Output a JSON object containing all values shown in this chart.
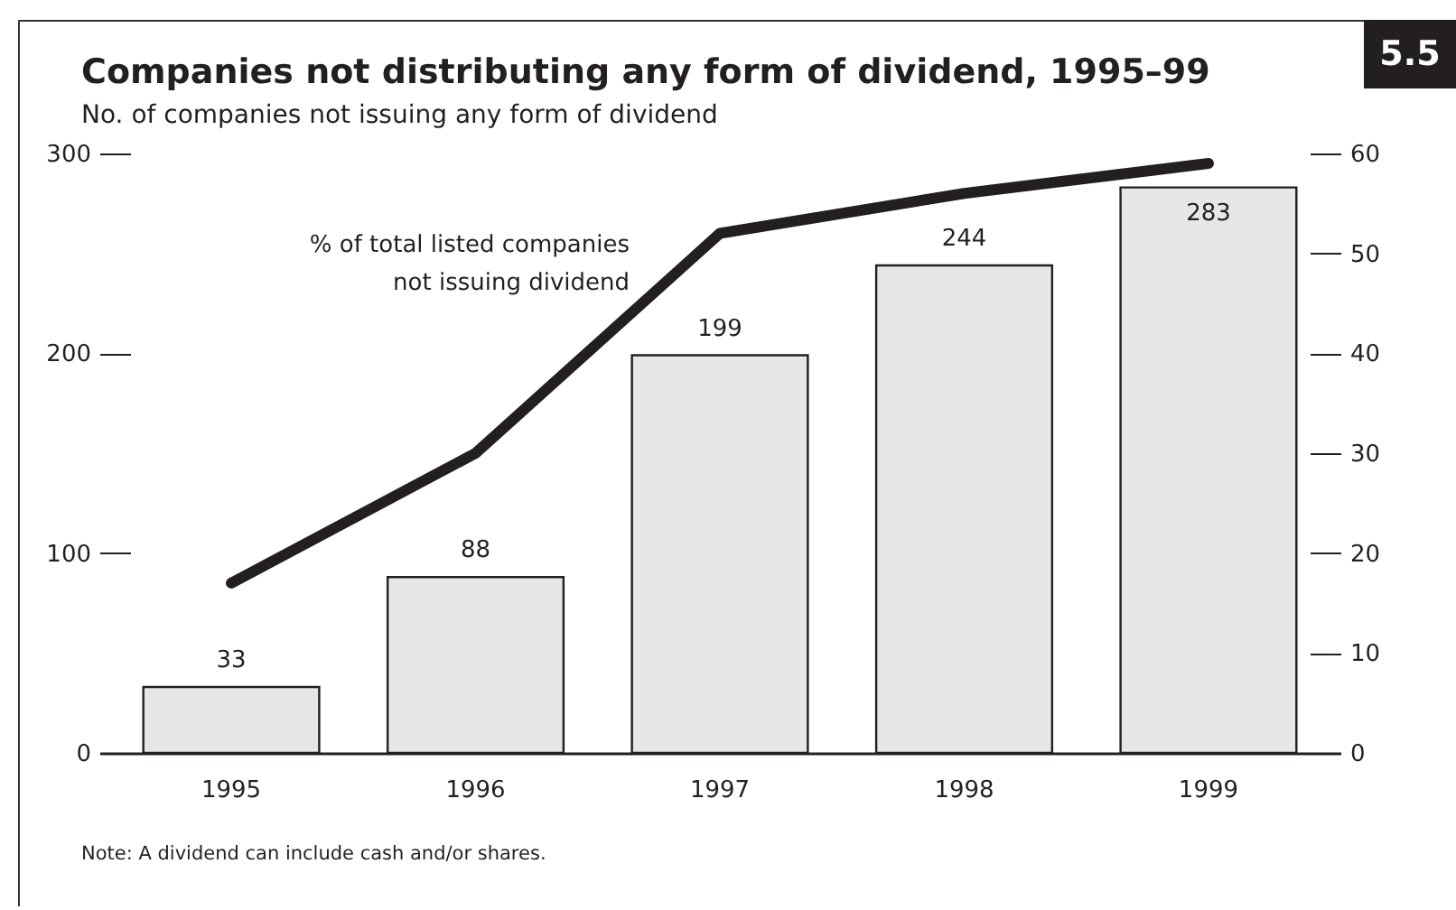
{
  "chart_data": {
    "type": "bar",
    "title": "Companies not distributing any form of dividend, 1995–99",
    "subtitle": "No. of companies not issuing any form of dividend",
    "categories": [
      "1995",
      "1996",
      "1997",
      "1998",
      "1999"
    ],
    "series": [
      {
        "color": "#e6e7e8",
        "values": [
          33,
          88,
          199,
          244,
          283
        ],
        "value_labels": [
          "33",
          "88",
          "199",
          "244",
          "283"
        ]
      },
      {
        "type": "line",
        "axis": "y2",
        "name": "% of total listed companies\nnot issuing dividend",
        "color": "#231f20",
        "values": [
          17,
          30,
          52,
          56,
          59
        ]
      }
    ],
    "ylim": [
      0,
      300
    ],
    "yticks": [
      0,
      100,
      200,
      300
    ],
    "y2lim": [
      0,
      60
    ],
    "y2ticks": [
      0,
      10,
      20,
      30,
      40,
      50,
      60
    ],
    "annotations": [
      "5.5",
      "Note: A dividend can include cash and/or shares."
    ]
  }
}
